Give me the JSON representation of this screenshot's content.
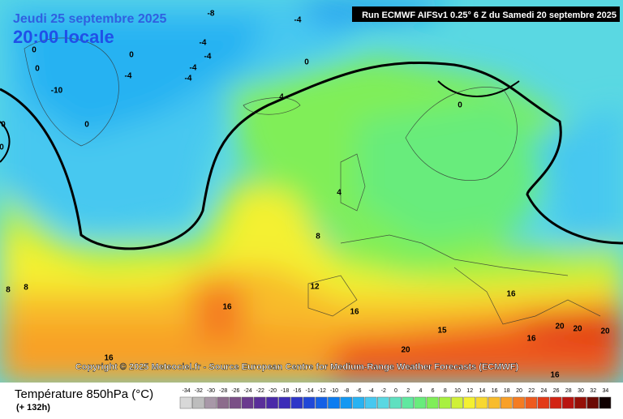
{
  "header": {
    "date": "Jeudi 25 septembre 2025",
    "time": "20:00 locale",
    "run": "Run ECMWF AIFSv1 0.25° 6 Z du Samedi 20 septembre 2025"
  },
  "copyright": "Copyright © 2025 Meteociel.fr - Source European Centre for Medium-Range Weather Forecasts (ECMWF)",
  "contour_labels": [
    -8,
    -4,
    0,
    0,
    0,
    -4,
    -4,
    -4,
    -4,
    -4,
    -10,
    0,
    4,
    0,
    0,
    0,
    0,
    4,
    8,
    8,
    8,
    12,
    16,
    16,
    16,
    15,
    16,
    20,
    20,
    20,
    20,
    16,
    16
  ],
  "legend": {
    "title": "Température 850hPa (°C)",
    "subtitle": "(+ 132h)",
    "values": [
      -34,
      -32,
      -30,
      -28,
      -26,
      -24,
      -22,
      -20,
      -18,
      -16,
      -14,
      -12,
      -10,
      -8,
      -6,
      -4,
      -2,
      0,
      2,
      4,
      6,
      8,
      10,
      12,
      14,
      16,
      18,
      20,
      22,
      24,
      26,
      28,
      30,
      32,
      34
    ],
    "colors": [
      "#d8d8d8",
      "#bdbdbd",
      "#a898a8",
      "#8c6c8c",
      "#7a4f86",
      "#6a3a8e",
      "#5a2f9a",
      "#4a2aa8",
      "#3c2cb8",
      "#2e36c8",
      "#2048d8",
      "#1460e6",
      "#0c7cf0",
      "#1498f2",
      "#28b2f2",
      "#46c8f0",
      "#5ad8e2",
      "#60e0c0",
      "#60e8a0",
      "#68ec7c",
      "#80ee58",
      "#a8f040",
      "#d0f038",
      "#f4f030",
      "#f8d830",
      "#f8bc2c",
      "#f8a028",
      "#f47c22",
      "#ee5a1e",
      "#e23a18",
      "#d22414",
      "#b81410",
      "#961008",
      "#6c0a04",
      "#100000"
    ]
  }
}
